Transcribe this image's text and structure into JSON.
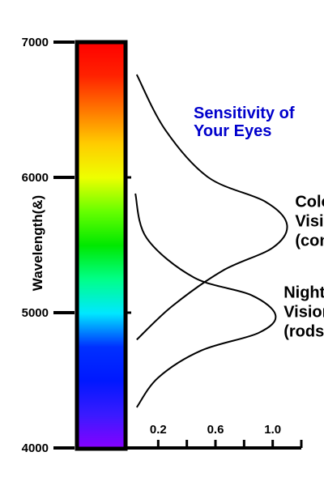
{
  "chart_data": {
    "type": "line",
    "title": "Sensitivity of Your Eyes",
    "title_color": "#0000cc",
    "ylabel": "Wavelength(&)",
    "ylim": [
      4000,
      7000
    ],
    "y_ticks": [
      "4000",
      "5000",
      "6000",
      "7000"
    ],
    "xlim": [
      0,
      1.2
    ],
    "x_ticks": [
      "0.2",
      "0.6",
      "1.0"
    ],
    "spectrum_colors": [
      "#8800ff",
      "#3a1aff",
      "#0018ff",
      "#0030ff",
      "#00e8ff",
      "#00ff88",
      "#00e800",
      "#66ff00",
      "#eeff00",
      "#ffcc00",
      "#ff7700",
      "#ff2200",
      "#ff0000"
    ],
    "series": [
      {
        "label_lines": [
          "Color",
          "Vision",
          "(cones)"
        ],
        "points": [
          [
            0.05,
            6760
          ],
          [
            0.25,
            6350
          ],
          [
            0.55,
            6000
          ],
          [
            0.95,
            5820
          ],
          [
            1.1,
            5650
          ],
          [
            1.0,
            5480
          ],
          [
            0.65,
            5310
          ],
          [
            0.3,
            5050
          ],
          [
            0.05,
            4800
          ]
        ]
      },
      {
        "label_lines": [
          "Night",
          "Vision",
          "(rods)"
        ],
        "points": [
          [
            0.04,
            5880
          ],
          [
            0.12,
            5550
          ],
          [
            0.45,
            5260
          ],
          [
            0.85,
            5130
          ],
          [
            1.02,
            4980
          ],
          [
            0.9,
            4850
          ],
          [
            0.5,
            4720
          ],
          [
            0.2,
            4520
          ],
          [
            0.05,
            4300
          ]
        ]
      }
    ]
  }
}
